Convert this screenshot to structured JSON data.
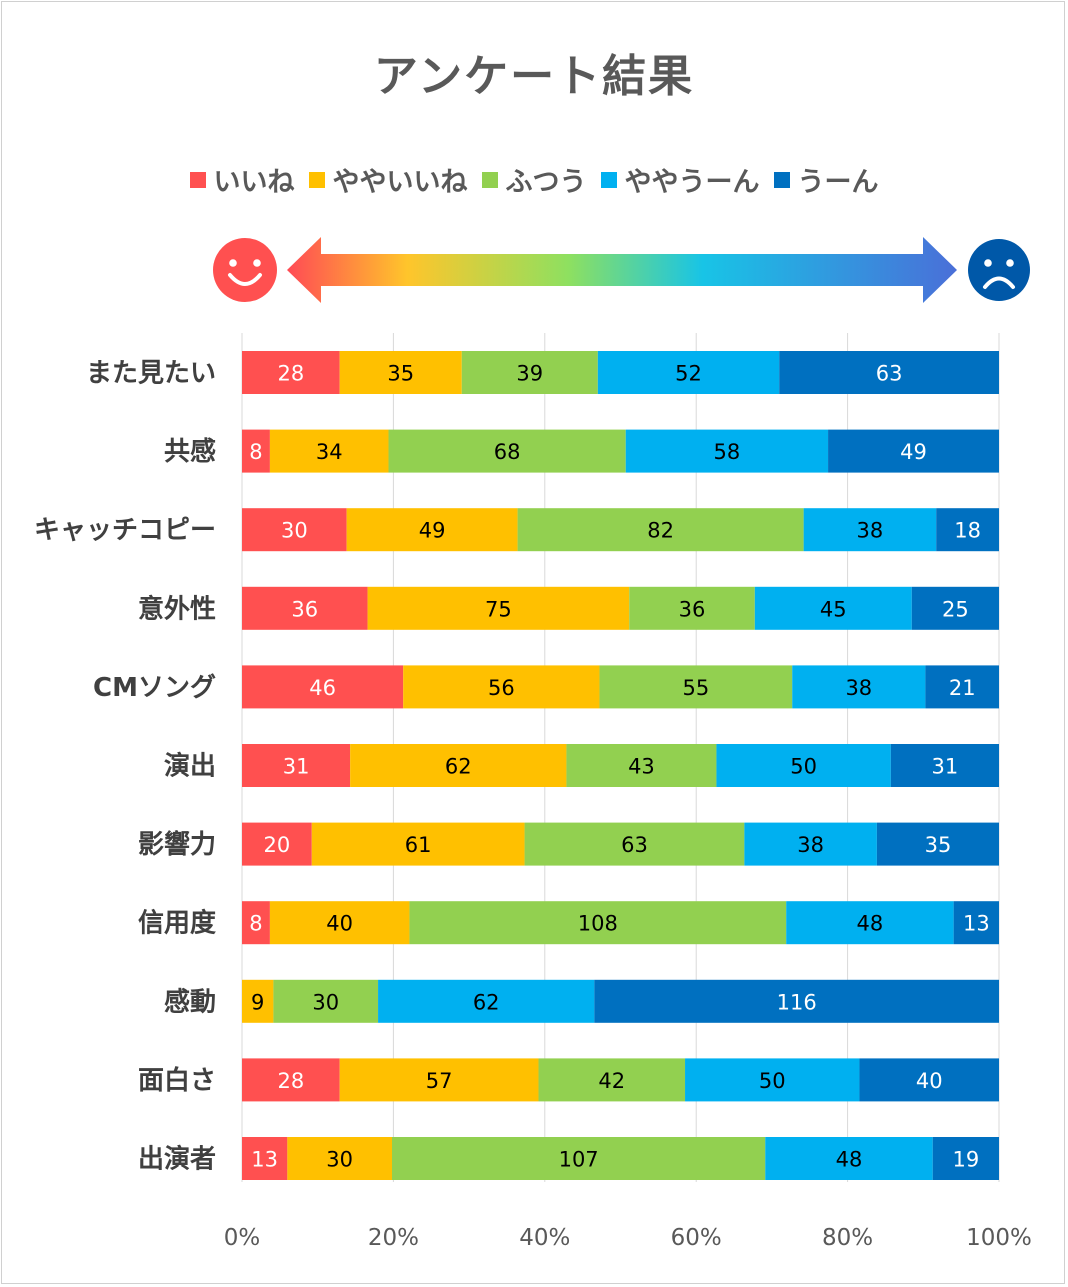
{
  "chart_data": {
    "type": "bar",
    "orientation": "horizontal",
    "stacked": "percent",
    "title": "アンケート結果",
    "categories": [
      "また見たい",
      "共感",
      "キャッチコピー",
      "意外性",
      "CMソング",
      "演出",
      "影響力",
      "信用度",
      "感動",
      "面白さ",
      "出演者"
    ],
    "series": [
      {
        "name": "いいね",
        "color": "#ff5050",
        "label_color": "#ffffff",
        "values": [
          28,
          8,
          30,
          36,
          46,
          31,
          20,
          8,
          0,
          28,
          13
        ]
      },
      {
        "name": "ややいいね",
        "color": "#ffc000",
        "label_color": "#000000",
        "values": [
          35,
          34,
          49,
          75,
          56,
          62,
          61,
          40,
          9,
          57,
          30
        ]
      },
      {
        "name": "ふつう",
        "color": "#92d050",
        "label_color": "#000000",
        "values": [
          39,
          68,
          82,
          36,
          55,
          43,
          63,
          108,
          30,
          42,
          107
        ]
      },
      {
        "name": "ややうーん",
        "color": "#00b0f0",
        "label_color": "#000000",
        "values": [
          52,
          58,
          38,
          45,
          38,
          50,
          38,
          48,
          62,
          50,
          48
        ]
      },
      {
        "name": "うーん",
        "color": "#0070c0",
        "label_color": "#ffffff",
        "values": [
          63,
          49,
          18,
          25,
          21,
          31,
          35,
          13,
          116,
          40,
          19
        ]
      }
    ],
    "x_ticks": [
      "0%",
      "20%",
      "40%",
      "60%",
      "80%",
      "100%"
    ],
    "xlim": [
      0,
      100
    ],
    "grid": true,
    "legend_position": "top"
  },
  "icons": {
    "positive": "smiley-face-icon",
    "negative": "sad-face-icon",
    "scale": "double-headed-gradient-arrow"
  },
  "colors": {
    "positive_icon": "#ff5050",
    "negative_icon": "#0058a8",
    "title": "#595959"
  }
}
